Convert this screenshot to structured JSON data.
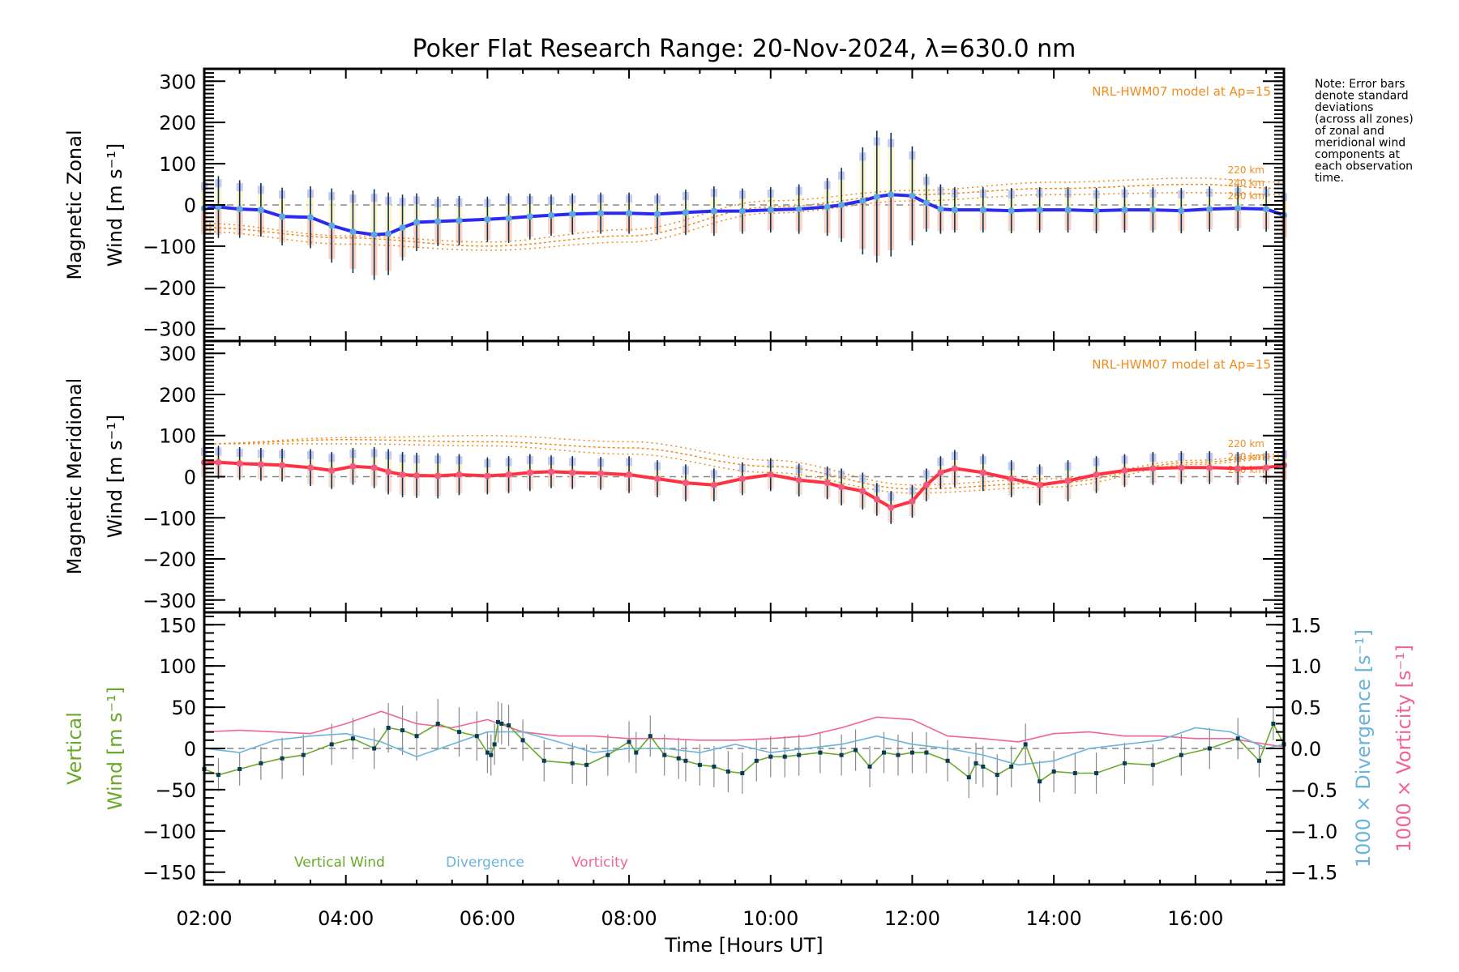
{
  "chart_data": [
    {
      "type": "line",
      "title": "Poker Flat Research Range: 20-Nov-2024, λ=630.0 nm",
      "panel": "zonal",
      "ylabel_line1": "Magnetic Zonal",
      "ylabel_line2": "Wind [m s⁻¹]",
      "xlabel": "Time [Hours UT]",
      "ylim": [
        -330,
        330
      ],
      "yticks": [
        300,
        200,
        100,
        0,
        -100,
        -200,
        -300
      ],
      "xlim": [
        2.0,
        17.25
      ],
      "model_label": "NRL-HWM07 model at Ap=15",
      "model_altitudes": [
        "220 km",
        "240 km",
        "260 km"
      ],
      "mean_color": "#2a2af0",
      "series": [
        {
          "name": "Mean zonal wind",
          "x": [
            2.0,
            2.2,
            2.5,
            2.8,
            3.1,
            3.5,
            3.8,
            4.1,
            4.4,
            4.6,
            4.8,
            5.0,
            5.3,
            5.6,
            6.0,
            6.3,
            6.6,
            6.9,
            7.2,
            7.6,
            8.0,
            8.4,
            8.8,
            9.2,
            9.6,
            10.0,
            10.4,
            10.8,
            11.0,
            11.3,
            11.5,
            11.7,
            12.0,
            12.2,
            12.4,
            12.6,
            13.0,
            13.4,
            13.8,
            14.2,
            14.6,
            15.0,
            15.4,
            15.8,
            16.2,
            16.6,
            17.0,
            17.25
          ],
          "y": [
            -8,
            -5,
            -10,
            -12,
            -28,
            -30,
            -50,
            -65,
            -72,
            -70,
            -55,
            -42,
            -40,
            -38,
            -35,
            -32,
            -28,
            -25,
            -22,
            -20,
            -20,
            -22,
            -18,
            -15,
            -15,
            -12,
            -10,
            -5,
            0,
            10,
            20,
            25,
            22,
            5,
            -10,
            -12,
            -12,
            -14,
            -12,
            -12,
            -14,
            -12,
            -12,
            -14,
            -10,
            -8,
            -10,
            -25
          ],
          "err": [
            70,
            75,
            70,
            65,
            70,
            75,
            90,
            100,
            110,
            100,
            80,
            70,
            60,
            60,
            55,
            60,
            55,
            50,
            50,
            50,
            50,
            50,
            55,
            60,
            55,
            55,
            60,
            70,
            90,
            130,
            160,
            150,
            120,
            70,
            60,
            55,
            55,
            55,
            55,
            55,
            55,
            55,
            55,
            55,
            55,
            55,
            55,
            60
          ]
        },
        {
          "name": "HWM07 220 km",
          "x": [
            2.0,
            4.0,
            6.0,
            8.0,
            10.0,
            12.0,
            14.0,
            16.0,
            17.25
          ],
          "y": [
            -45,
            -75,
            -90,
            -60,
            10,
            35,
            55,
            65,
            55
          ]
        },
        {
          "name": "HWM07 240 km",
          "x": [
            2.0,
            4.0,
            6.0,
            8.0,
            10.0,
            12.0,
            14.0,
            16.0,
            17.25
          ],
          "y": [
            -55,
            -80,
            -100,
            -75,
            -5,
            25,
            40,
            50,
            40
          ]
        },
        {
          "name": "HWM07 260 km",
          "x": [
            2.0,
            4.0,
            6.0,
            8.0,
            10.0,
            12.0,
            14.0,
            16.0,
            17.25
          ],
          "y": [
            -65,
            -95,
            -110,
            -90,
            -20,
            10,
            25,
            30,
            25
          ]
        }
      ]
    },
    {
      "type": "line",
      "panel": "meridional",
      "ylabel_line1": "Magnetic Meridional",
      "ylabel_line2": "Wind [m s⁻¹]",
      "ylim": [
        -330,
        330
      ],
      "yticks": [
        300,
        200,
        100,
        0,
        -100,
        -200,
        -300
      ],
      "xlim": [
        2.0,
        17.25
      ],
      "model_label": "NRL-HWM07 model at Ap=15",
      "model_altitudes": [
        "220 km",
        "240 km",
        "260 km"
      ],
      "mean_color": "#ff3040",
      "series": [
        {
          "name": "Mean meridional wind",
          "x": [
            2.0,
            2.2,
            2.5,
            2.8,
            3.1,
            3.5,
            3.8,
            4.1,
            4.4,
            4.6,
            4.8,
            5.0,
            5.3,
            5.6,
            6.0,
            6.3,
            6.6,
            6.9,
            7.2,
            7.6,
            8.0,
            8.4,
            8.8,
            9.2,
            9.6,
            10.0,
            10.4,
            10.8,
            11.0,
            11.3,
            11.5,
            11.7,
            12.0,
            12.2,
            12.4,
            12.6,
            13.0,
            13.4,
            13.8,
            14.2,
            14.6,
            15.0,
            15.4,
            15.8,
            16.2,
            16.6,
            17.0,
            17.25
          ],
          "y": [
            35,
            35,
            32,
            30,
            28,
            22,
            15,
            25,
            22,
            12,
            5,
            3,
            2,
            5,
            2,
            5,
            10,
            12,
            10,
            8,
            5,
            -5,
            -15,
            -20,
            -5,
            5,
            -8,
            -15,
            -25,
            -35,
            -55,
            -75,
            -60,
            -20,
            10,
            20,
            10,
            -5,
            -20,
            -10,
            5,
            15,
            20,
            22,
            22,
            20,
            22,
            28
          ],
          "err": [
            40,
            40,
            40,
            40,
            40,
            45,
            45,
            45,
            50,
            55,
            55,
            55,
            55,
            50,
            45,
            45,
            45,
            40,
            40,
            40,
            45,
            45,
            45,
            40,
            40,
            40,
            40,
            40,
            45,
            45,
            40,
            40,
            40,
            40,
            40,
            45,
            45,
            45,
            50,
            50,
            45,
            40,
            40,
            40,
            40,
            40,
            40,
            40
          ]
        },
        {
          "name": "HWM07 220 km",
          "x": [
            2.0,
            4.0,
            6.0,
            8.0,
            10.0,
            12.0,
            14.0,
            16.0,
            17.25
          ],
          "y": [
            80,
            95,
            100,
            85,
            40,
            -20,
            -5,
            40,
            55
          ]
        },
        {
          "name": "HWM07 240 km",
          "x": [
            2.0,
            4.0,
            6.0,
            8.0,
            10.0,
            12.0,
            14.0,
            16.0,
            17.25
          ],
          "y": [
            80,
            90,
            85,
            70,
            25,
            -30,
            -15,
            35,
            50
          ]
        },
        {
          "name": "HWM07 260 km",
          "x": [
            2.0,
            4.0,
            6.0,
            8.0,
            10.0,
            12.0,
            14.0,
            16.0,
            17.25
          ],
          "y": [
            80,
            80,
            75,
            55,
            10,
            -40,
            -25,
            30,
            45
          ]
        }
      ]
    },
    {
      "type": "line",
      "panel": "vertical",
      "ylabel_line1": "Vertical",
      "ylabel_line2": "Wind [m s⁻¹]",
      "ylabel_right1": "1000 × Divergence [s⁻¹]",
      "ylabel_right2": "1000 × Vorticity [s⁻¹]",
      "ylim": [
        -165,
        165
      ],
      "yticks": [
        150,
        100,
        50,
        0,
        -50,
        -100,
        -150
      ],
      "ylim_right": [
        -1.65,
        1.65
      ],
      "yticks_right": [
        "1.5",
        "1.0",
        "0.5",
        "0.0",
        "−0.5",
        "−1.0",
        "−1.5"
      ],
      "xlim": [
        2.0,
        17.25
      ],
      "xticks": [
        "02:00",
        "04:00",
        "06:00",
        "08:00",
        "10:00",
        "12:00",
        "14:00",
        "16:00"
      ],
      "legend": [
        "Vertical Wind",
        "Divergence",
        "Vorticity"
      ],
      "series": [
        {
          "name": "Vertical Wind",
          "color": "#6aaa2a",
          "x": [
            2.0,
            2.2,
            2.5,
            2.8,
            3.1,
            3.4,
            3.8,
            4.1,
            4.4,
            4.6,
            4.8,
            5.0,
            5.3,
            5.6,
            5.85,
            6.0,
            6.05,
            6.1,
            6.15,
            6.2,
            6.3,
            6.5,
            6.8,
            7.2,
            7.4,
            7.7,
            8.0,
            8.1,
            8.3,
            8.5,
            8.7,
            8.8,
            9.0,
            9.2,
            9.4,
            9.6,
            9.8,
            10.0,
            10.2,
            10.4,
            10.7,
            11.0,
            11.2,
            11.4,
            11.6,
            11.8,
            12.0,
            12.2,
            12.5,
            12.8,
            12.9,
            13.0,
            13.2,
            13.4,
            13.6,
            13.8,
            14.0,
            14.3,
            14.6,
            15.0,
            15.4,
            15.8,
            16.2,
            16.6,
            16.9,
            17.1,
            17.25
          ],
          "y": [
            -25,
            -32,
            -25,
            -18,
            -12,
            -8,
            5,
            12,
            0,
            25,
            22,
            15,
            30,
            20,
            15,
            -5,
            -8,
            5,
            32,
            30,
            28,
            10,
            -15,
            -18,
            -20,
            -8,
            8,
            -5,
            15,
            -8,
            -12,
            -15,
            -20,
            -22,
            -28,
            -30,
            -15,
            -10,
            -10,
            -8,
            -5,
            -8,
            -2,
            -22,
            -5,
            -8,
            -5,
            -5,
            -15,
            -35,
            -18,
            -22,
            -32,
            -22,
            5,
            -40,
            -28,
            -30,
            -30,
            -18,
            -20,
            -8,
            0,
            12,
            -15,
            30,
            5
          ],
          "err": [
            20,
            20,
            20,
            20,
            25,
            25,
            25,
            25,
            25,
            30,
            30,
            30,
            30,
            30,
            30,
            25,
            25,
            25,
            25,
            25,
            25,
            25,
            25,
            25,
            25,
            25,
            25,
            25,
            25,
            25,
            25,
            25,
            25,
            25,
            25,
            25,
            25,
            25,
            25,
            25,
            25,
            25,
            25,
            25,
            25,
            25,
            25,
            25,
            25,
            25,
            25,
            25,
            25,
            25,
            25,
            25,
            25,
            25,
            25,
            25,
            25,
            25,
            25,
            25,
            20,
            20,
            20
          ]
        },
        {
          "name": "Divergence",
          "color": "#6ab4dc",
          "x": [
            2.0,
            2.5,
            3.0,
            3.5,
            4.0,
            4.5,
            5.0,
            5.5,
            6.0,
            6.5,
            7.0,
            7.5,
            8.0,
            8.5,
            9.0,
            9.5,
            10.0,
            10.5,
            11.0,
            11.5,
            12.0,
            12.5,
            13.0,
            13.5,
            14.0,
            14.5,
            15.0,
            15.5,
            16.0,
            16.5,
            17.0,
            17.25
          ],
          "y": [
            0.0,
            -0.05,
            0.1,
            0.15,
            0.18,
            0.08,
            -0.1,
            0.05,
            0.2,
            0.2,
            0.08,
            -0.05,
            0.0,
            0.0,
            -0.05,
            0.05,
            -0.05,
            0.0,
            0.05,
            0.15,
            0.05,
            0.0,
            -0.08,
            -0.2,
            -0.15,
            0.0,
            0.05,
            0.1,
            0.25,
            0.2,
            0.0,
            0.05
          ]
        },
        {
          "name": "Vorticity",
          "color": "#f06496",
          "x": [
            2.0,
            2.5,
            3.0,
            3.5,
            4.0,
            4.5,
            5.0,
            5.5,
            6.0,
            6.5,
            7.0,
            7.5,
            8.0,
            8.5,
            9.0,
            9.5,
            10.0,
            10.5,
            11.0,
            11.5,
            12.0,
            12.5,
            13.0,
            13.5,
            14.0,
            14.5,
            15.0,
            15.5,
            16.0,
            16.5,
            17.0,
            17.25
          ],
          "y": [
            0.2,
            0.22,
            0.2,
            0.18,
            0.3,
            0.45,
            0.3,
            0.25,
            0.35,
            0.2,
            0.15,
            0.15,
            0.12,
            0.12,
            0.1,
            0.1,
            0.12,
            0.15,
            0.25,
            0.38,
            0.35,
            0.15,
            0.12,
            0.08,
            0.18,
            0.2,
            0.15,
            0.15,
            0.12,
            0.12,
            0.05,
            0.02
          ]
        }
      ]
    }
  ],
  "note": [
    "Note: Error bars",
    "denote standard",
    "deviations",
    "(across all zones)",
    "of zonal and",
    "meridional wind",
    "components at",
    "each observation",
    "time."
  ]
}
